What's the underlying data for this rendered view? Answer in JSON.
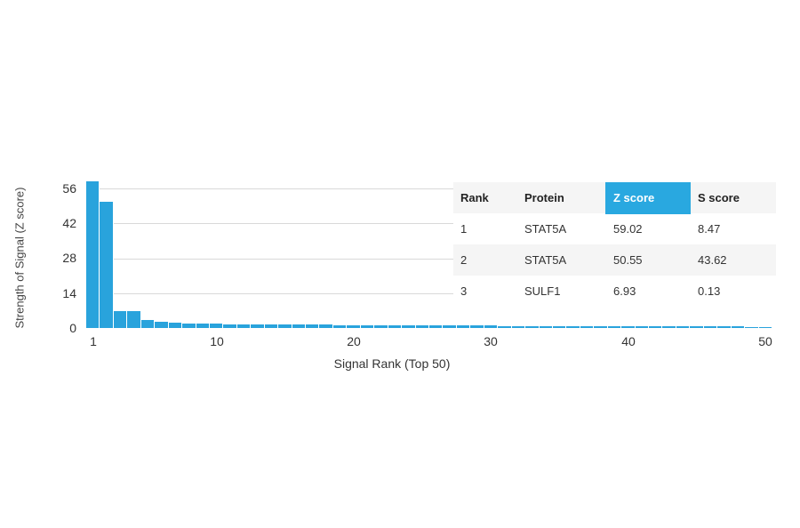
{
  "chart_data": {
    "type": "bar",
    "title": "",
    "xlabel": "Signal Rank (Top 50)",
    "ylabel": "Strength of Signal (Z score)",
    "ylim": [
      0,
      60
    ],
    "yticks": [
      0,
      14,
      28,
      42,
      56
    ],
    "xticks": [
      1,
      10,
      20,
      30,
      40,
      50
    ],
    "grid": true,
    "color": "#29a3dc",
    "categories": [
      1,
      2,
      3,
      4,
      5,
      6,
      7,
      8,
      9,
      10,
      11,
      12,
      13,
      14,
      15,
      16,
      17,
      18,
      19,
      20,
      21,
      22,
      23,
      24,
      25,
      26,
      27,
      28,
      29,
      30,
      31,
      32,
      33,
      34,
      35,
      36,
      37,
      38,
      39,
      40,
      41,
      42,
      43,
      44,
      45,
      46,
      47,
      48,
      49,
      50
    ],
    "values": [
      59.02,
      50.55,
      6.93,
      6.9,
      3.2,
      2.6,
      2.2,
      1.9,
      1.8,
      1.7,
      1.6,
      1.6,
      1.5,
      1.5,
      1.4,
      1.4,
      1.3,
      1.3,
      1.2,
      1.2,
      1.1,
      1.1,
      1.1,
      1.0,
      1.0,
      1.0,
      0.9,
      0.9,
      0.9,
      0.9,
      0.8,
      0.8,
      0.8,
      0.8,
      0.8,
      0.7,
      0.7,
      0.7,
      0.7,
      0.7,
      0.7,
      0.6,
      0.6,
      0.6,
      0.6,
      0.6,
      0.6,
      0.6,
      0.5,
      0.5
    ]
  },
  "table": {
    "headers": [
      "Rank",
      "Protein",
      "Z score",
      "S score"
    ],
    "highlight_header": "Z score",
    "highlight_color": "#29a8e0",
    "rows": [
      {
        "rank": "1",
        "protein": "STAT5A",
        "z": "59.02",
        "s": "8.47"
      },
      {
        "rank": "2",
        "protein": "STAT5A",
        "z": "50.55",
        "s": "43.62"
      },
      {
        "rank": "3",
        "protein": "SULF1",
        "z": "6.93",
        "s": "0.13"
      }
    ]
  },
  "axis": {
    "ylabel": "Strength of Signal (Z score)",
    "xlabel": "Signal Rank (Top 50)",
    "yticks": [
      "0",
      "14",
      "28",
      "42",
      "56"
    ],
    "xticks": [
      "1",
      "10",
      "20",
      "30",
      "40",
      "50"
    ]
  }
}
